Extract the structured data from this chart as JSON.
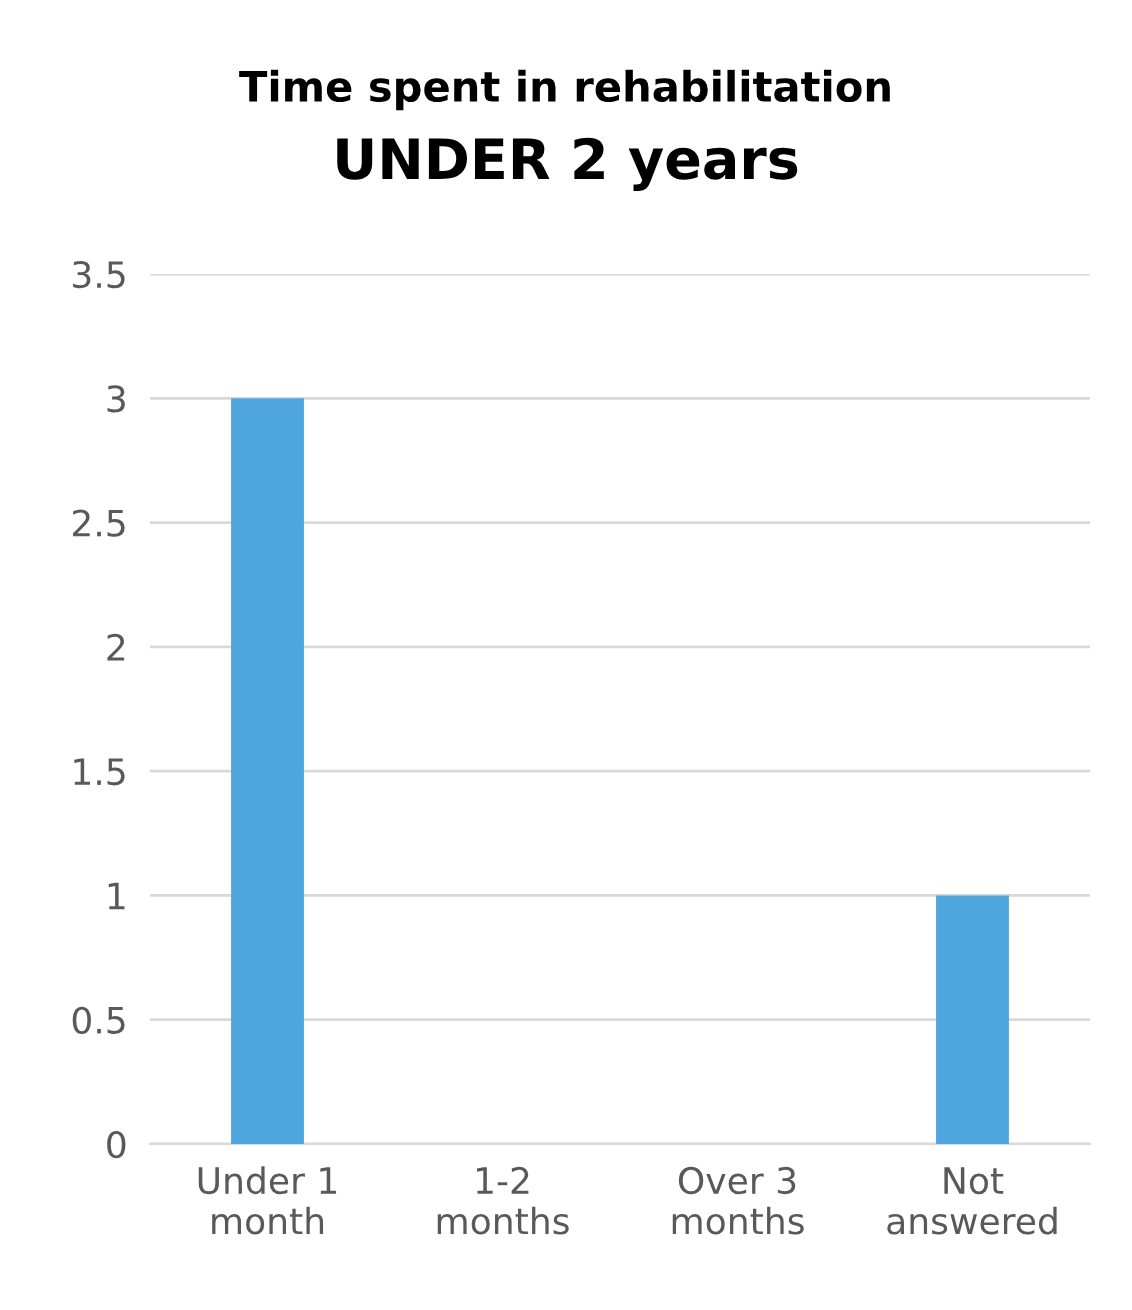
{
  "chart_data": {
    "type": "bar",
    "title": "Time spent in rehabilitation",
    "subtitle": "UNDER 2 years",
    "categories": [
      "Under 1\nmonth",
      "1-2\nmonths",
      "Over 3\nmonths",
      "Not\nanswered"
    ],
    "values": [
      3,
      0,
      0,
      1
    ],
    "color": "#4fa5dd",
    "ylim": [
      0,
      3.5
    ],
    "yticks": [
      0,
      0.5,
      1,
      1.5,
      2,
      2.5,
      3,
      3.5
    ],
    "grid": "y"
  }
}
